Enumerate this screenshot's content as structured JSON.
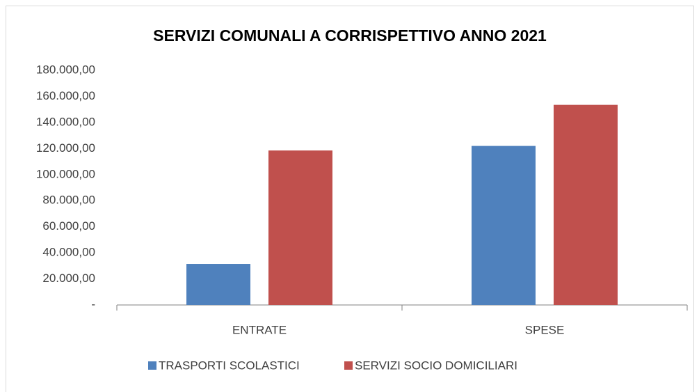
{
  "chart_data": {
    "type": "bar",
    "title": "SERVIZI COMUNALI A CORRISPETTIVO ANNO 2021",
    "categories": [
      "ENTRATE",
      "SPESE"
    ],
    "series": [
      {
        "name": "TRASPORTI SCOLASTICI",
        "color": "#4f81bd",
        "values": [
          31500,
          122000
        ]
      },
      {
        "name": "SERVIZI SOCIO DOMICILIARI",
        "color": "#c0504d",
        "values": [
          118500,
          153500
        ]
      }
    ],
    "ylim": [
      0,
      180000
    ],
    "yticks": [
      {
        "value": 0,
        "label": "-"
      },
      {
        "value": 20000,
        "label": "20.000,00"
      },
      {
        "value": 40000,
        "label": "40.000,00"
      },
      {
        "value": 60000,
        "label": "60.000,00"
      },
      {
        "value": 80000,
        "label": "80.000,00"
      },
      {
        "value": 100000,
        "label": "100.000,00"
      },
      {
        "value": 120000,
        "label": "120.000,00"
      },
      {
        "value": 140000,
        "label": "140.000,00"
      },
      {
        "value": 160000,
        "label": "160.000,00"
      },
      {
        "value": 180000,
        "label": "180.000,00"
      }
    ],
    "grid": false,
    "legend": "bottom"
  }
}
